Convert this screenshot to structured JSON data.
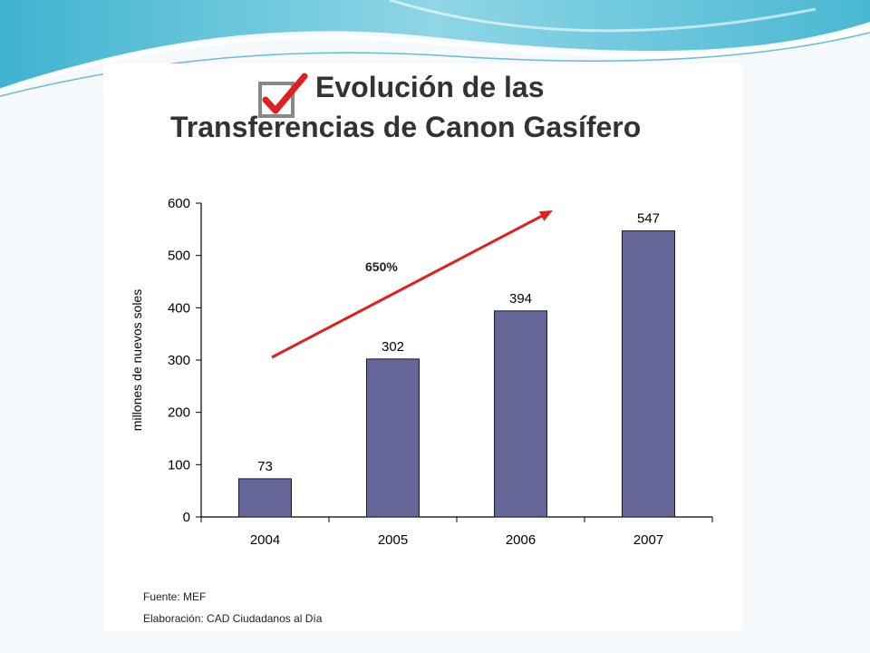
{
  "slide": {
    "title_line_1": "Evolución de las",
    "title_line_2": "Transferencias de Canon Gasífero"
  },
  "colors": {
    "bar": "#666699",
    "bar_stroke": "#1a1a2e",
    "arrow": "#e02020",
    "check": "#e02020",
    "checkbox_border": "#888888"
  },
  "icons": {
    "title_icon": "checkbox-checked-icon"
  },
  "chart_data": {
    "type": "bar",
    "categories": [
      "2004",
      "2005",
      "2006",
      "2007"
    ],
    "values": [
      73,
      302,
      394,
      547
    ],
    "data_labels": [
      "73",
      "302",
      "394",
      "547"
    ],
    "ylabel": "millones de nuevos soles",
    "ylim": [
      0,
      600
    ],
    "yticks": [
      0,
      100,
      200,
      300,
      400,
      500,
      600
    ],
    "grid": false,
    "annotation": {
      "text": "650%",
      "type": "trend-arrow"
    }
  },
  "footnotes": {
    "source": "Fuente: MEF",
    "elaboration": "Elaboración: CAD Ciudadanos al Día"
  }
}
